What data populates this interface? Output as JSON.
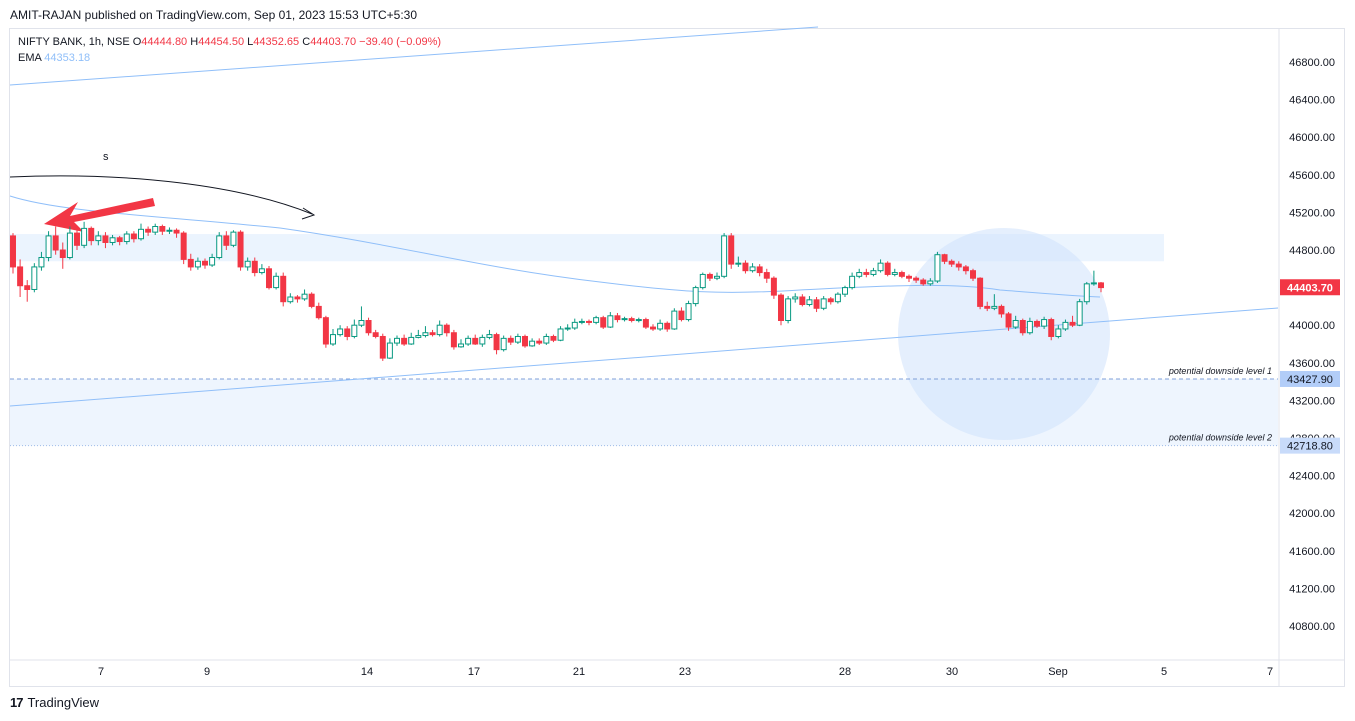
{
  "header": {
    "published": "AMIT-RAJAN published on TradingView.com, Sep 01, 2023 15:53 UTC+5:30"
  },
  "legend": {
    "symbol": "NIFTY BANK, 1h, NSE",
    "o_label": "O",
    "o_value": "44444.80",
    "h_label": "H",
    "h_value": "44454.50",
    "l_label": "L",
    "l_value": "44352.65",
    "c_label": "C",
    "c_value": "44403.70",
    "change": "−39.40 (−0.09%)",
    "ema_label": "EMA",
    "ema_value": "44353.18"
  },
  "footer": {
    "brand": "TradingView",
    "logo": "17"
  },
  "chart_data": {
    "type": "candlestick",
    "interval": "1h",
    "ylim": [
      40400,
      47200
    ],
    "yticks": [
      46800,
      46400,
      46000,
      45600,
      45200,
      44800,
      44400,
      44000,
      43600,
      43200,
      42800,
      42400,
      42000,
      41600,
      41200,
      40800
    ],
    "xticks": [
      "7",
      "9",
      "14",
      "17",
      "21",
      "23",
      "28",
      "30",
      "Sep",
      "5",
      "7"
    ],
    "last_price": "44403.70",
    "price_labels": [
      {
        "value": "43427.90",
        "note": "potential downside level 1"
      },
      {
        "value": "42718.80",
        "note": "potential downside level 2"
      }
    ],
    "ema_value": 44353.18,
    "annotation_text": "s",
    "colors": {
      "up": "#089981",
      "down": "#f23645",
      "ema": "#90bff9",
      "zone": "#e3effd",
      "last": "#f23645",
      "label_bg": "#2962ff"
    },
    "candles": [
      [
        44950,
        44620,
        44980,
        44550
      ],
      [
        44620,
        44420,
        44700,
        44300
      ],
      [
        44420,
        44380,
        44480,
        44250
      ],
      [
        44380,
        44620,
        44660,
        44350
      ],
      [
        44620,
        44720,
        44780,
        44580
      ],
      [
        44720,
        44950,
        45000,
        44680
      ],
      [
        44950,
        44800,
        45050,
        44750
      ],
      [
        44800,
        44720,
        44880,
        44600
      ],
      [
        44720,
        44980,
        45050,
        44700
      ],
      [
        44980,
        44850,
        45020,
        44800
      ],
      [
        44850,
        45030,
        45100,
        44820
      ],
      [
        45030,
        44900,
        45050,
        44850
      ],
      [
        44900,
        44950,
        45000,
        44850
      ],
      [
        44950,
        44880,
        44990,
        44820
      ],
      [
        44880,
        44930,
        44960,
        44850
      ],
      [
        44930,
        44890,
        44950,
        44850
      ],
      [
        44890,
        44970,
        45000,
        44860
      ],
      [
        44970,
        44920,
        45000,
        44880
      ],
      [
        44920,
        45020,
        45080,
        44900
      ],
      [
        45020,
        44990,
        45050,
        44950
      ],
      [
        44990,
        45050,
        45080,
        44960
      ],
      [
        45050,
        45000,
        45070,
        44960
      ],
      [
        45000,
        45010,
        45040,
        44970
      ],
      [
        45010,
        44980,
        45030,
        44930
      ],
      [
        44980,
        44700,
        45000,
        44650
      ],
      [
        44700,
        44620,
        44760,
        44580
      ],
      [
        44620,
        44680,
        44720,
        44590
      ],
      [
        44680,
        44640,
        44710,
        44600
      ],
      [
        44640,
        44720,
        44760,
        44620
      ],
      [
        44720,
        44950,
        44990,
        44700
      ],
      [
        44950,
        44850,
        45000,
        44800
      ],
      [
        44850,
        44990,
        45010,
        44830
      ],
      [
        44990,
        44620,
        45010,
        44580
      ],
      [
        44620,
        44680,
        44720,
        44580
      ],
      [
        44680,
        44560,
        44720,
        44520
      ],
      [
        44560,
        44600,
        44650,
        44540
      ],
      [
        44600,
        44400,
        44630,
        44380
      ],
      [
        44400,
        44520,
        44560,
        44380
      ],
      [
        44520,
        44250,
        44560,
        44200
      ],
      [
        44250,
        44300,
        44340,
        44230
      ],
      [
        44300,
        44280,
        44320,
        44240
      ],
      [
        44280,
        44330,
        44380,
        44260
      ],
      [
        44330,
        44200,
        44350,
        44180
      ],
      [
        44200,
        44080,
        44240,
        44060
      ],
      [
        44080,
        43800,
        44100,
        43760
      ],
      [
        43800,
        43900,
        43960,
        43780
      ],
      [
        43900,
        43960,
        44000,
        43880
      ],
      [
        43960,
        43880,
        43990,
        43840
      ],
      [
        43880,
        44000,
        44060,
        43860
      ],
      [
        44000,
        44050,
        44200,
        43980
      ],
      [
        44050,
        43920,
        44080,
        43890
      ],
      [
        43920,
        43880,
        43950,
        43860
      ],
      [
        43880,
        43650,
        43910,
        43620
      ],
      [
        43650,
        43810,
        43860,
        43640
      ],
      [
        43810,
        43860,
        43890,
        43780
      ],
      [
        43860,
        43800,
        43900,
        43780
      ],
      [
        43800,
        43870,
        43920,
        43790
      ],
      [
        43870,
        43890,
        43950,
        43860
      ],
      [
        43890,
        43920,
        43990,
        43870
      ],
      [
        43920,
        43900,
        43950,
        43880
      ],
      [
        43900,
        44000,
        44050,
        43880
      ],
      [
        44000,
        43920,
        44020,
        43880
      ],
      [
        43920,
        43770,
        43950,
        43740
      ],
      [
        43770,
        43800,
        43850,
        43760
      ],
      [
        43800,
        43860,
        43890,
        43780
      ],
      [
        43860,
        43800,
        43900,
        43790
      ],
      [
        43800,
        43870,
        43900,
        43770
      ],
      [
        43870,
        43900,
        43950,
        43850
      ],
      [
        43900,
        43740,
        43920,
        43690
      ],
      [
        43740,
        43860,
        43890,
        43720
      ],
      [
        43860,
        43820,
        43890,
        43790
      ],
      [
        43820,
        43880,
        43910,
        43800
      ],
      [
        43880,
        43780,
        43900,
        43760
      ],
      [
        43780,
        43830,
        43860,
        43770
      ],
      [
        43830,
        43810,
        43860,
        43790
      ],
      [
        43810,
        43880,
        43910,
        43790
      ],
      [
        43880,
        43840,
        43900,
        43820
      ],
      [
        43840,
        43960,
        43990,
        43830
      ],
      [
        43960,
        43970,
        44010,
        43940
      ],
      [
        43970,
        44030,
        44070,
        43950
      ],
      [
        44030,
        44040,
        44070,
        44010
      ],
      [
        44040,
        44030,
        44060,
        44000
      ],
      [
        44030,
        44080,
        44100,
        44010
      ],
      [
        44080,
        43980,
        44100,
        43960
      ],
      [
        43980,
        44100,
        44140,
        43970
      ],
      [
        44100,
        44060,
        44130,
        44030
      ],
      [
        44060,
        44070,
        44090,
        44040
      ],
      [
        44070,
        44050,
        44090,
        44030
      ],
      [
        44050,
        44060,
        44080,
        44030
      ],
      [
        44060,
        43980,
        44080,
        43960
      ],
      [
        43980,
        43960,
        44010,
        43940
      ],
      [
        43960,
        44020,
        44060,
        43940
      ],
      [
        44020,
        43960,
        44040,
        43930
      ],
      [
        43960,
        44150,
        44180,
        43950
      ],
      [
        44150,
        44060,
        44190,
        44040
      ],
      [
        44060,
        44230,
        44260,
        44040
      ],
      [
        44230,
        44400,
        44420,
        44200
      ],
      [
        44400,
        44540,
        44560,
        44380
      ],
      [
        44540,
        44500,
        44560,
        44470
      ],
      [
        44500,
        44520,
        44560,
        44480
      ],
      [
        44520,
        44950,
        44980,
        44500
      ],
      [
        44950,
        44650,
        44980,
        44600
      ],
      [
        44650,
        44660,
        44730,
        44620
      ],
      [
        44660,
        44580,
        44690,
        44550
      ],
      [
        44580,
        44620,
        44660,
        44560
      ],
      [
        44620,
        44560,
        44650,
        44520
      ],
      [
        44560,
        44500,
        44600,
        44450
      ],
      [
        44500,
        44320,
        44520,
        44280
      ],
      [
        44320,
        44050,
        44340,
        44000
      ],
      [
        44050,
        44280,
        44310,
        44020
      ],
      [
        44280,
        44300,
        44340,
        44240
      ],
      [
        44300,
        44220,
        44330,
        44200
      ],
      [
        44220,
        44270,
        44310,
        44200
      ],
      [
        44270,
        44180,
        44300,
        44140
      ],
      [
        44180,
        44280,
        44310,
        44160
      ],
      [
        44280,
        44250,
        44300,
        44220
      ],
      [
        44250,
        44330,
        44350,
        44230
      ],
      [
        44330,
        44400,
        44420,
        44300
      ],
      [
        44400,
        44520,
        44560,
        44380
      ],
      [
        44520,
        44560,
        44600,
        44500
      ],
      [
        44560,
        44540,
        44600,
        44510
      ],
      [
        44540,
        44580,
        44610,
        44520
      ],
      [
        44580,
        44660,
        44700,
        44560
      ],
      [
        44660,
        44540,
        44680,
        44520
      ],
      [
        44540,
        44560,
        44600,
        44520
      ],
      [
        44560,
        44520,
        44580,
        44500
      ],
      [
        44520,
        44500,
        44540,
        44460
      ],
      [
        44500,
        44480,
        44520,
        44450
      ],
      [
        44480,
        44440,
        44500,
        44420
      ],
      [
        44440,
        44470,
        44500,
        44420
      ],
      [
        44470,
        44750,
        44780,
        44450
      ],
      [
        44750,
        44680,
        44760,
        44650
      ],
      [
        44680,
        44650,
        44700,
        44620
      ],
      [
        44650,
        44620,
        44680,
        44580
      ],
      [
        44620,
        44580,
        44640,
        44540
      ],
      [
        44580,
        44500,
        44600,
        44470
      ],
      [
        44500,
        44200,
        44510,
        44170
      ],
      [
        44200,
        44180,
        44250,
        44150
      ],
      [
        44180,
        44200,
        44330,
        44160
      ],
      [
        44200,
        44120,
        44220,
        44080
      ],
      [
        44120,
        43980,
        44140,
        43940
      ],
      [
        43980,
        44050,
        44100,
        43960
      ],
      [
        44050,
        43920,
        44070,
        43890
      ],
      [
        43920,
        44040,
        44080,
        43900
      ],
      [
        44040,
        43990,
        44060,
        43970
      ],
      [
        43990,
        44060,
        44090,
        43960
      ],
      [
        44060,
        43880,
        44080,
        43840
      ],
      [
        43880,
        43960,
        44000,
        43860
      ],
      [
        43960,
        44030,
        44060,
        43940
      ],
      [
        44030,
        44000,
        44100,
        43980
      ],
      [
        44000,
        44250,
        44280,
        43990
      ],
      [
        44250,
        44440,
        44460,
        44220
      ],
      [
        44440,
        44450,
        44580,
        44420
      ],
      [
        44450,
        44400,
        44460,
        44350
      ]
    ]
  }
}
